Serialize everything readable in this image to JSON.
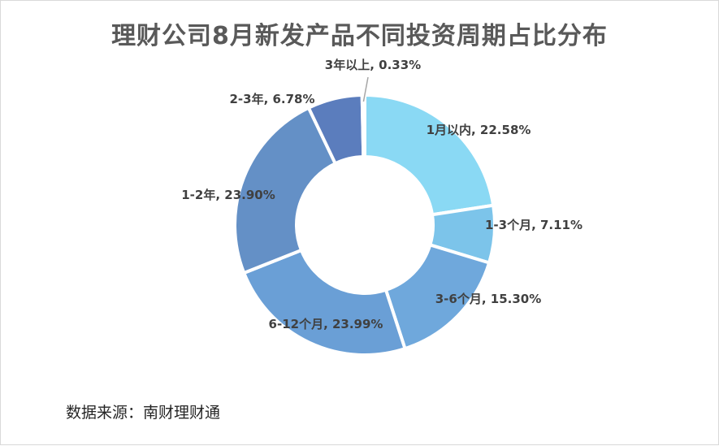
{
  "chart_data": {
    "type": "pie",
    "subtype": "donut",
    "title": "理财公司8月新发产品不同投资周期占比分布",
    "categories": [
      "1月以内",
      "1-3个月",
      "3-6个月",
      "6-12个月",
      "1-2年",
      "2-3年",
      "3年以上"
    ],
    "values": [
      22.58,
      7.11,
      15.3,
      23.99,
      23.9,
      6.78,
      0.33
    ],
    "labels": [
      "1月以内, 22.58%",
      "1-3个月, 7.11%",
      "3-6个月, 15.30%",
      "6-12个月, 23.99%",
      "1-2年, 23.90%",
      "2-3年, 6.78%",
      "3年以上, 0.33%"
    ],
    "colors": [
      "#8ad9f4",
      "#7cc4ea",
      "#6fa8dc",
      "#6a9fd6",
      "#6490c6",
      "#5b7dbd",
      "#4a6aa8"
    ],
    "legend": "none",
    "source": "数据来源：南财理财通"
  }
}
